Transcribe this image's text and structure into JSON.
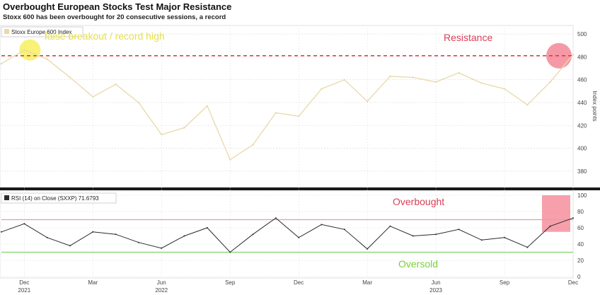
{
  "title": "Overbought European Stocks Test Major Resistance",
  "subtitle": "Stoxx 600 has been overbought for 20 consecutive sessions, a record",
  "colors": {
    "price_line": "#e8d9a8",
    "resistance": "#e0323c",
    "rsi_line": "#2a2a2a",
    "overbought_line": "#d9a3a3",
    "oversold_line": "#7fd66a",
    "highlight_yellow": "#f5ee4a",
    "highlight_red": "#f26d80",
    "annotation_yellow": "#e6e04a",
    "annotation_red": "#d8405a",
    "annotation_green": "#7ccf3a"
  },
  "chart_data": [
    {
      "type": "line",
      "legend": "Stoxx Europe 600 Index",
      "legend_position": "top-left",
      "ylabel": "Index points",
      "ylim": [
        370,
        505
      ],
      "yticks": [
        380,
        400,
        420,
        440,
        460,
        480,
        500
      ],
      "grid": true,
      "x": [
        "2021-11",
        "2021-12",
        "2022-01",
        "2022-02",
        "2022-03",
        "2022-04",
        "2022-05",
        "2022-06",
        "2022-07",
        "2022-08",
        "2022-09",
        "2022-10",
        "2022-11",
        "2022-12",
        "2023-01",
        "2023-02",
        "2023-03",
        "2023-04",
        "2023-05",
        "2023-06",
        "2023-07",
        "2023-08",
        "2023-09",
        "2023-10",
        "2023-11",
        "2023-12"
      ],
      "values": [
        474,
        486,
        478,
        462,
        445,
        456,
        440,
        412,
        418,
        437,
        390,
        403,
        431,
        428,
        452,
        460,
        441,
        463,
        462,
        458,
        466,
        457,
        452,
        438,
        458,
        482
      ],
      "resistance_level": 481,
      "annotations": [
        {
          "text": "false breakout / record high",
          "color": "annotation_yellow"
        },
        {
          "text": "Resistance",
          "color": "annotation_red"
        }
      ]
    },
    {
      "type": "line",
      "legend": "RSI (14)  on Close (SXXP) 71.6793",
      "legend_position": "top-left",
      "ylim": [
        0,
        100
      ],
      "yticks": [
        0,
        20,
        40,
        60,
        80,
        100
      ],
      "overbought_level": 70,
      "oversold_level": 30,
      "x": [
        "2021-11",
        "2021-12",
        "2022-01",
        "2022-02",
        "2022-03",
        "2022-04",
        "2022-05",
        "2022-06",
        "2022-07",
        "2022-08",
        "2022-09",
        "2022-10",
        "2022-11",
        "2022-12",
        "2023-01",
        "2023-02",
        "2023-03",
        "2023-04",
        "2023-05",
        "2023-06",
        "2023-07",
        "2023-08",
        "2023-09",
        "2023-10",
        "2023-11",
        "2023-12"
      ],
      "values": [
        55,
        65,
        48,
        38,
        55,
        52,
        42,
        35,
        50,
        60,
        30,
        52,
        72,
        48,
        64,
        58,
        34,
        62,
        50,
        52,
        58,
        45,
        48,
        36,
        62,
        72
      ],
      "annotations": [
        {
          "text": "Overbought",
          "color": "annotation_red"
        },
        {
          "text": "Oversold",
          "color": "annotation_green"
        }
      ]
    }
  ],
  "x_axis": {
    "tick_labels": [
      "Dec",
      "Mar",
      "Jun",
      "Sep",
      "Dec",
      "Mar",
      "Jun",
      "Sep",
      "Dec"
    ],
    "tick_months": [
      "2021-12",
      "2022-03",
      "2022-06",
      "2022-09",
      "2022-12",
      "2023-03",
      "2023-06",
      "2023-09",
      "2023-12"
    ],
    "year_labels": [
      "2021",
      "2022",
      "2023"
    ],
    "year_months": [
      "2021-12",
      "2022-06",
      "2023-06"
    ]
  }
}
